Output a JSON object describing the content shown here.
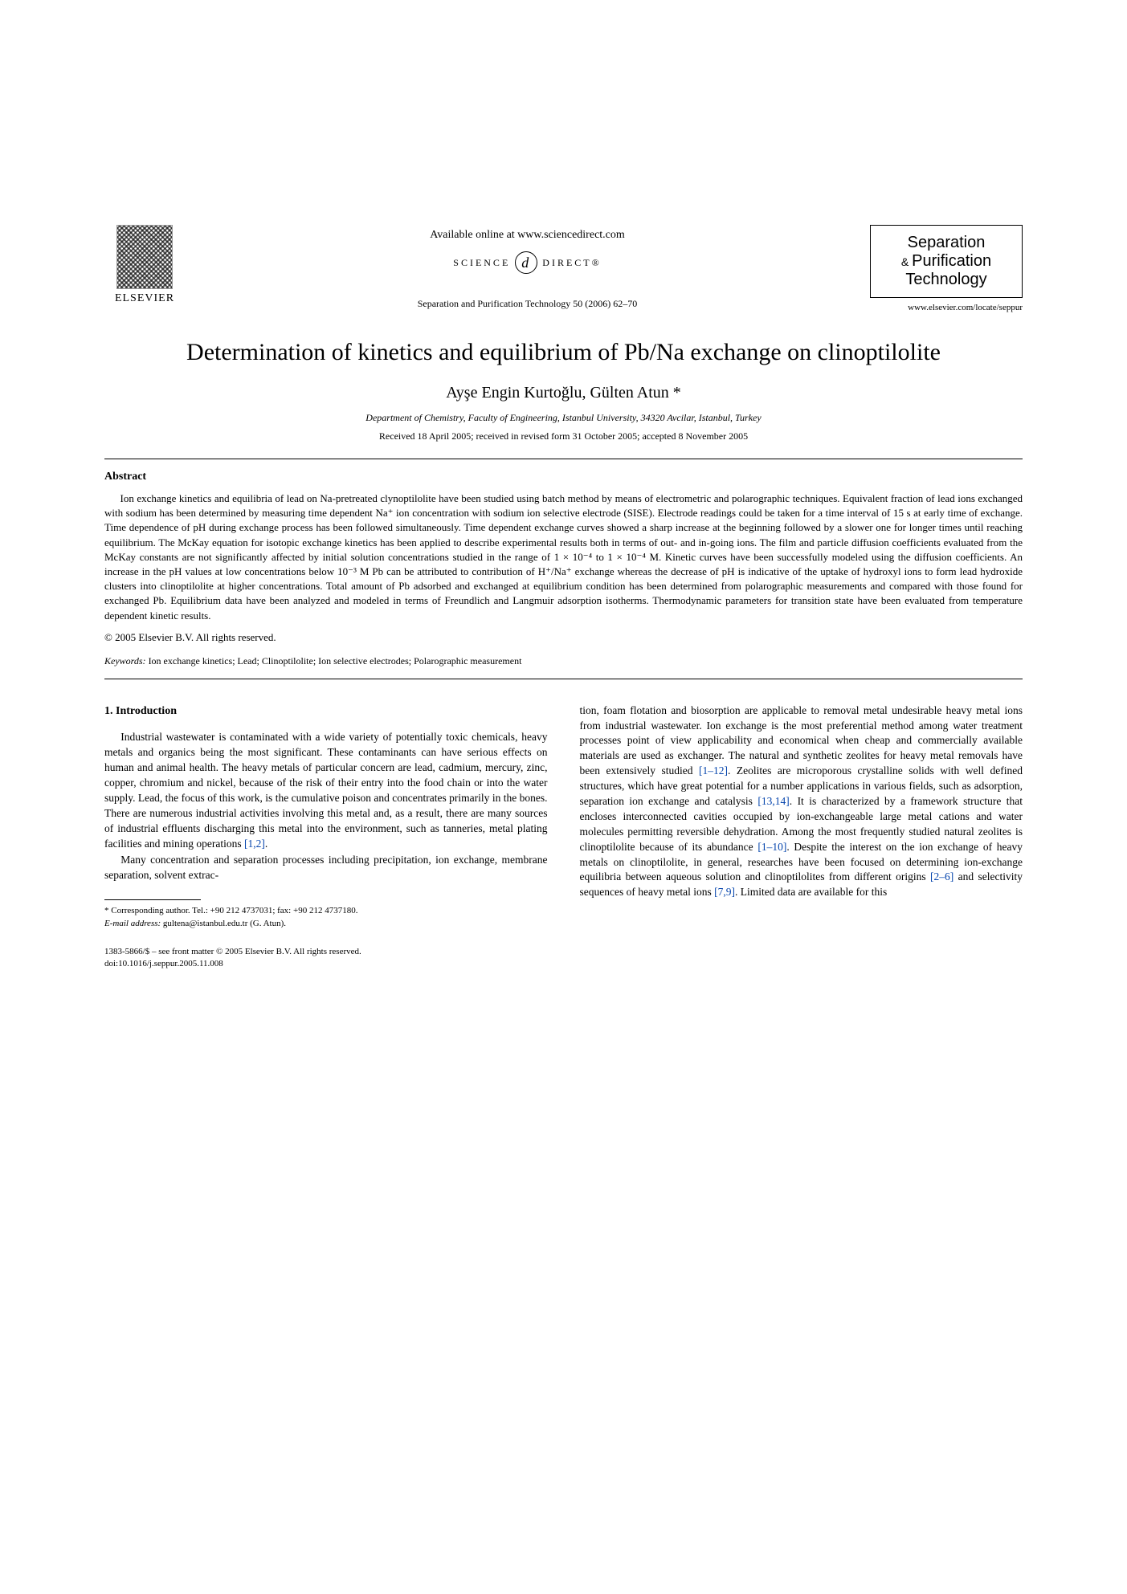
{
  "publisher": {
    "name": "ELSEVIER"
  },
  "header": {
    "available_online": "Available online at www.sciencedirect.com",
    "science": "SCIENCE",
    "direct": "DIRECT®",
    "citation": "Separation and Purification Technology 50 (2006) 62–70"
  },
  "journal": {
    "line1": "Separation",
    "line2": "Purification",
    "line3": "Technology",
    "url": "www.elsevier.com/locate/seppur"
  },
  "title": "Determination of kinetics and equilibrium of Pb/Na exchange on clinoptilolite",
  "authors": "Ayşe Engin Kurtoğlu, Gülten Atun *",
  "affiliation": "Department of Chemistry, Faculty of Engineering, Istanbul University, 34320 Avcilar, Istanbul, Turkey",
  "dates": "Received 18 April 2005; received in revised form 31 October 2005; accepted 8 November 2005",
  "abstract": {
    "heading": "Abstract",
    "text": "Ion exchange kinetics and equilibria of lead on Na-pretreated clynoptilolite have been studied using batch method by means of electrometric and polarographic techniques. Equivalent fraction of lead ions exchanged with sodium has been determined by measuring time dependent Na⁺ ion concentration with sodium ion selective electrode (SISE). Electrode readings could be taken for a time interval of 15 s at early time of exchange. Time dependence of pH during exchange process has been followed simultaneously. Time dependent exchange curves showed a sharp increase at the beginning followed by a slower one for longer times until reaching equilibrium. The McKay equation for isotopic exchange kinetics has been applied to describe experimental results both in terms of out- and in-going ions. The film and particle diffusion coefficients evaluated from the McKay constants are not significantly affected by initial solution concentrations studied in the range of 1 × 10⁻⁴ to 1 × 10⁻⁴ M. Kinetic curves have been successfully modeled using the diffusion coefficients. An increase in the pH values at low concentrations below 10⁻³ M Pb can be attributed to contribution of H⁺/Na⁺ exchange whereas the decrease of pH is indicative of the uptake of hydroxyl ions to form lead hydroxide clusters into clinoptilolite at higher concentrations. Total amount of Pb adsorbed and exchanged at equilibrium condition has been determined from polarographic measurements and compared with those found for exchanged Pb. Equilibrium data have been analyzed and modeled in terms of Freundlich and Langmuir adsorption isotherms. Thermodynamic parameters for transition state have been evaluated from temperature dependent kinetic results.",
    "copyright": "© 2005 Elsevier B.V. All rights reserved."
  },
  "keywords": {
    "label": "Keywords:",
    "text": "Ion exchange kinetics; Lead; Clinoptilolite; Ion selective electrodes; Polarographic measurement"
  },
  "section1": {
    "heading": "1. Introduction",
    "p1": "Industrial wastewater is contaminated with a wide variety of potentially toxic chemicals, heavy metals and organics being the most significant. These contaminants can have serious effects on human and animal health. The heavy metals of particular concern are lead, cadmium, mercury, zinc, copper, chromium and nickel, because of the risk of their entry into the food chain or into the water supply. Lead, the focus of this work, is the cumulative poison and concentrates primarily in the bones. There are numerous industrial activities involving this metal and, as a result, there are many sources of industrial effluents discharging this metal into the environment, such as tanneries, metal plating facilities and mining operations ",
    "p1_ref": "[1,2]",
    "p1_end": ".",
    "p2": "Many concentration and separation processes including precipitation, ion exchange, membrane separation, solvent extrac-",
    "col2_p1a": "tion, foam flotation and biosorption are applicable to removal metal undesirable heavy metal ions from industrial wastewater. Ion exchange is the most preferential method among water treatment processes point of view applicability and economical when cheap and commercially available materials are used as exchanger. The natural and synthetic zeolites for heavy metal removals have been extensively studied ",
    "col2_ref1": "[1–12]",
    "col2_p1b": ". Zeolites are microporous crystalline solids with well defined structures, which have great potential for a number applications in various fields, such as adsorption, separation ion exchange and catalysis ",
    "col2_ref2": "[13,14]",
    "col2_p1c": ". It is characterized by a framework structure that encloses interconnected cavities occupied by ion-exchangeable large metal cations and water molecules permitting reversible dehydration. Among the most frequently studied natural zeolites is clinoptilolite because of its abundance ",
    "col2_ref3": "[1–10]",
    "col2_p1d": ". Despite the interest on the ion exchange of heavy metals on clinoptilolite, in general, researches have been focused on determining ion-exchange equilibria between aqueous solution and clinoptilolites from different origins ",
    "col2_ref4": "[2–6]",
    "col2_p1e": " and selectivity sequences of heavy metal ions ",
    "col2_ref5": "[7,9]",
    "col2_p1f": ". Limited data are available for this"
  },
  "footnote": {
    "corr": "* Corresponding author. Tel.: +90 212 4737031; fax: +90 212 4737180.",
    "email_label": "E-mail address:",
    "email": "gultena@istanbul.edu.tr (G. Atun)."
  },
  "doi": {
    "line1": "1383-5866/$ – see front matter © 2005 Elsevier B.V. All rights reserved.",
    "line2": "doi:10.1016/j.seppur.2005.11.008"
  }
}
